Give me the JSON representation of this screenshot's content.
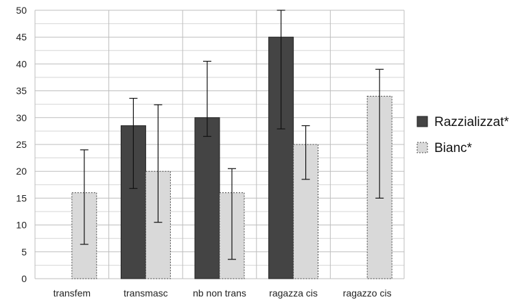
{
  "chart_data": {
    "type": "bar",
    "title": "",
    "xlabel": "",
    "ylabel": "",
    "ylim": [
      0,
      50
    ],
    "yticks": [
      0,
      5,
      10,
      15,
      20,
      25,
      30,
      35,
      40,
      45,
      50
    ],
    "grid": true,
    "legend_position": "right",
    "categories": [
      "transfem",
      "transmasc",
      "nb non trans",
      "ragazza cis",
      "ragazzo cis"
    ],
    "series": [
      {
        "name": "Razzializzat*",
        "color": "#444444",
        "border": "solid",
        "values": [
          null,
          28.5,
          30,
          45,
          null
        ],
        "error_low": [
          null,
          16.8,
          26.5,
          27.9,
          null
        ],
        "error_high": [
          null,
          33.6,
          40.5,
          50,
          null
        ]
      },
      {
        "name": "Bianc*",
        "color": "#d9d9d9",
        "border": "dashed",
        "values": [
          16,
          20,
          16,
          25,
          34
        ],
        "error_low": [
          6.4,
          10.5,
          3.6,
          18.5,
          15
        ],
        "error_high": [
          24,
          32.4,
          20.5,
          28.5,
          39
        ]
      }
    ]
  }
}
